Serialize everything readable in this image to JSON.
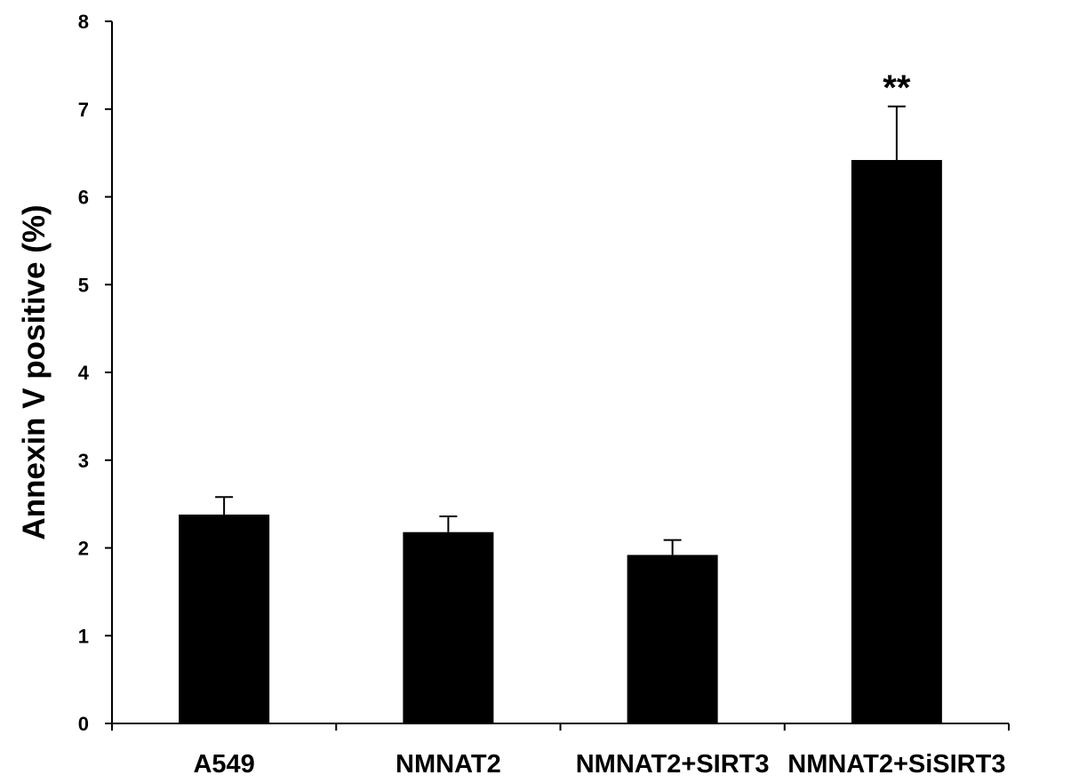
{
  "chart_data": {
    "type": "bar",
    "title": "",
    "xlabel": "",
    "ylabel": "Annexin V positive (%)",
    "categories": [
      "A549",
      "NMNAT2",
      "NMNAT2+SIRT3",
      "NMNAT2+SiSIRT3"
    ],
    "values": [
      2.38,
      2.18,
      1.92,
      6.42
    ],
    "errors": [
      0.2,
      0.18,
      0.17,
      0.61
    ],
    "annotations": [
      "",
      "",
      "",
      "**"
    ],
    "ylim": [
      0,
      8
    ],
    "yticks": [
      "0",
      "1",
      "2",
      "3",
      "4",
      "5",
      "6",
      "7",
      "8"
    ],
    "grid": false,
    "legend": "none",
    "bar_color": "#000000"
  }
}
